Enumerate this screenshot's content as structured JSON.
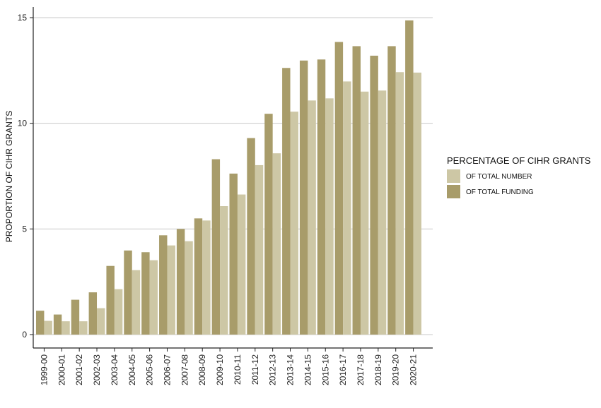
{
  "chart_data": {
    "type": "bar",
    "ylabel": "PROPORTION OF CIHR GRANTS",
    "xlabel": "",
    "ylim": [
      0,
      15
    ],
    "yticks": [
      0,
      5,
      10,
      15
    ],
    "grid": "horizontal major lines",
    "legend": {
      "title": "PERCENTAGE OF CIHR GRANTS",
      "position": "right"
    },
    "categories": [
      "1999-00",
      "2000-01",
      "2001-02",
      "2002-03",
      "2003-04",
      "2004-05",
      "2005-06",
      "2006-07",
      "2007-08",
      "2008-09",
      "2009-10",
      "2010-11",
      "2011-12",
      "2012-13",
      "2013-14",
      "2014-15",
      "2015-16",
      "2016-17",
      "2017-18",
      "2018-19",
      "2019-20",
      "2020-21"
    ],
    "series": [
      {
        "name": "OF TOTAL FUNDING",
        "color": "#a89c6a",
        "values": [
          1.13,
          0.95,
          1.65,
          2.0,
          3.25,
          3.98,
          3.9,
          4.7,
          5.0,
          5.5,
          8.3,
          7.62,
          9.3,
          10.45,
          12.62,
          12.97,
          13.02,
          13.85,
          13.65,
          13.2,
          13.65,
          14.87
        ]
      },
      {
        "name": "OF TOTAL NUMBER",
        "color": "#cdc7a5",
        "values": [
          0.65,
          0.63,
          0.63,
          1.25,
          2.15,
          3.05,
          3.52,
          4.22,
          4.42,
          5.4,
          6.08,
          6.63,
          8.02,
          8.58,
          10.55,
          11.08,
          11.18,
          11.98,
          11.5,
          11.55,
          12.42,
          12.4
        ]
      }
    ],
    "legend_order": [
      "OF TOTAL NUMBER",
      "OF TOTAL FUNDING"
    ]
  }
}
